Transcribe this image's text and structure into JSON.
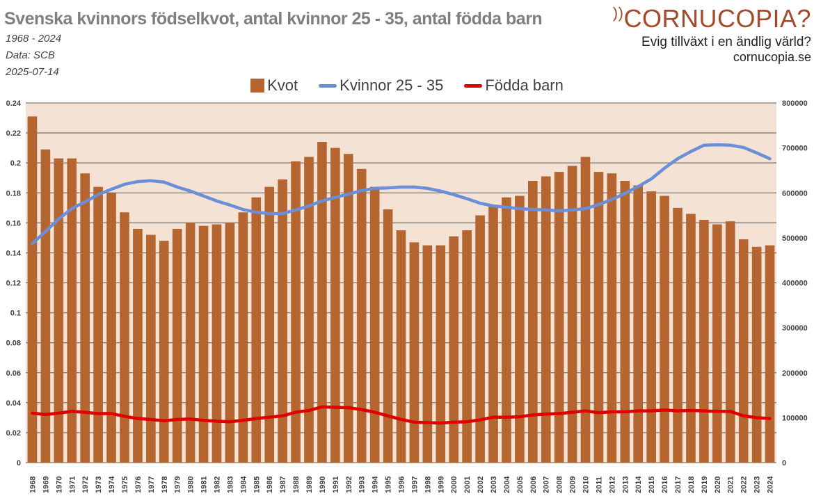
{
  "header": {
    "title": "Svenska kvinnors födselkvot, antal kvinnor 25 - 35, antal födda barn",
    "period": "1968 - 2024",
    "source": "Data: SCB",
    "date": "2025-07-14"
  },
  "logo": {
    "name": "CORNUCOPIA?",
    "tagline": "Evig tillväxt i en ändlig värld?",
    "url": "cornucopia.se"
  },
  "colors": {
    "bar": "#b5652f",
    "blue": "#6a8fd8",
    "red": "#e00000",
    "plot_bg": "#f4e2d5",
    "logo": "#a24a2b"
  },
  "chart_data": {
    "type": "bar",
    "title": "Svenska kvinnors födselkvot, antal kvinnor 25 - 35, antal födda barn",
    "legend_position": "top",
    "grid": true,
    "categories": [
      "1968",
      "1969",
      "1970",
      "1971",
      "1972",
      "1973",
      "1974",
      "1975",
      "1976",
      "1977",
      "1978",
      "1979",
      "1980",
      "1981",
      "1982",
      "1983",
      "1984",
      "1985",
      "1986",
      "1987",
      "1988",
      "1989",
      "1990",
      "1991",
      "1992",
      "1993",
      "1994",
      "1995",
      "1996",
      "1997",
      "1998",
      "1999",
      "2000",
      "2001",
      "2002",
      "2003",
      "2004",
      "2005",
      "2006",
      "2007",
      "2008",
      "2009",
      "2010",
      "2011",
      "2012",
      "2013",
      "2014",
      "2015",
      "2016",
      "2017",
      "2018",
      "2019",
      "2020",
      "2021",
      "2022",
      "2023",
      "2024"
    ],
    "y_left": {
      "range": [
        0,
        0.24
      ],
      "ticks": [
        "0",
        "0.02",
        "0.04",
        "0.06",
        "0.08",
        "0.1",
        "0.12",
        "0.14",
        "0.16",
        "0.18",
        "0.2",
        "0.22",
        "0.24"
      ]
    },
    "y_right": {
      "range": [
        0,
        800000
      ],
      "ticks": [
        "0",
        "100000",
        "200000",
        "300000",
        "400000",
        "500000",
        "600000",
        "700000",
        "800000"
      ]
    },
    "series": [
      {
        "name": "Kvot",
        "type": "bar",
        "axis": "left",
        "values": [
          0.231,
          0.209,
          0.203,
          0.203,
          0.193,
          0.184,
          0.18,
          0.167,
          0.156,
          0.152,
          0.148,
          0.156,
          0.16,
          0.158,
          0.159,
          0.16,
          0.167,
          0.177,
          0.184,
          0.189,
          0.201,
          0.204,
          0.214,
          0.21,
          0.206,
          0.196,
          0.184,
          0.169,
          0.155,
          0.147,
          0.145,
          0.145,
          0.151,
          0.155,
          0.165,
          0.172,
          0.177,
          0.178,
          0.188,
          0.191,
          0.194,
          0.198,
          0.204,
          0.194,
          0.193,
          0.188,
          0.185,
          0.181,
          0.178,
          0.17,
          0.166,
          0.162,
          0.159,
          0.161,
          0.149,
          0.144,
          0.145
        ]
      },
      {
        "name": "Kvinnor 25 - 35",
        "type": "line",
        "axis": "right",
        "values": [
          487000,
          514000,
          542000,
          565000,
          580000,
          596000,
          608000,
          619000,
          625000,
          627000,
          624000,
          613000,
          604000,
          593000,
          582000,
          573000,
          563000,
          557000,
          554000,
          554000,
          562000,
          571000,
          582000,
          590000,
          597000,
          605000,
          610000,
          611000,
          613000,
          613000,
          610000,
          604000,
          596000,
          587000,
          577000,
          571000,
          568000,
          565000,
          563000,
          562000,
          560000,
          562000,
          565000,
          574000,
          585000,
          599000,
          614000,
          631000,
          655000,
          676000,
          692000,
          706000,
          707000,
          706000,
          701000,
          689000,
          676000
        ]
      },
      {
        "name": "Födda barn",
        "type": "line",
        "axis": "right",
        "values": [
          110000,
          107000,
          110000,
          114000,
          112000,
          109000,
          109000,
          103000,
          98000,
          96000,
          93000,
          96000,
          97000,
          94000,
          92000,
          91000,
          94000,
          98000,
          101000,
          104000,
          112000,
          116000,
          124000,
          123000,
          122000,
          118000,
          112000,
          104000,
          96000,
          90000,
          89000,
          88000,
          90000,
          91000,
          95000,
          101000,
          101000,
          102000,
          106000,
          108000,
          109000,
          112000,
          115000,
          111000,
          113000,
          113000,
          115000,
          115000,
          117000,
          115000,
          116000,
          115000,
          114000,
          114000,
          104000,
          100000,
          98000
        ]
      }
    ]
  }
}
